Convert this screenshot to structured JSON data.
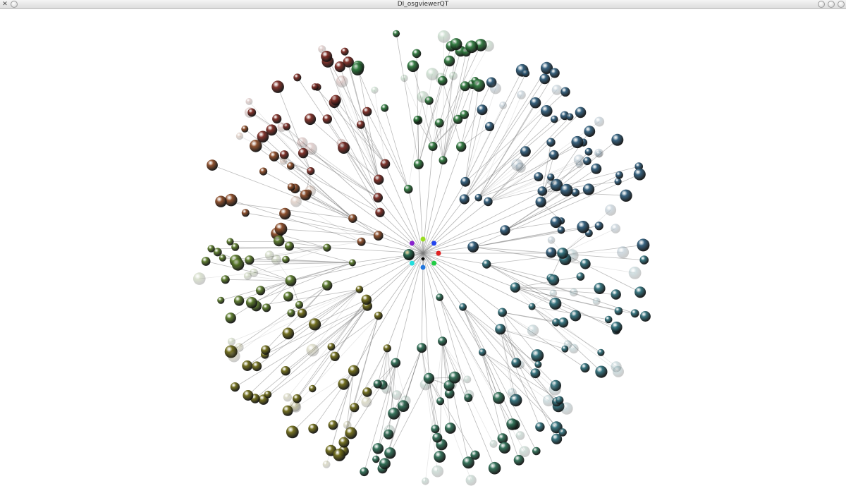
{
  "window": {
    "title": "DI_osgviewerQT",
    "left_icons": [
      "app-menu-icon",
      "pin-icon"
    ],
    "right_icons": [
      "minimize-icon",
      "maximize-icon",
      "close-icon"
    ]
  },
  "viewer": {
    "background": "#ffffff",
    "edge_color": "#7a7a7a",
    "sector_colors": [
      "#7b2a22",
      "#8a4a26",
      "#5a7a2a",
      "#6e6b18",
      "#2e6e55",
      "#2f6f7a",
      "#2f5c7a",
      "#2f7a3e"
    ]
  }
}
